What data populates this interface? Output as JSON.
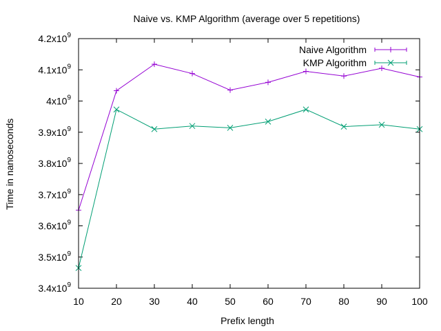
{
  "chart_data": {
    "type": "line",
    "title": "Naive vs. KMP Algorithm (average over 5 repetitions)",
    "xlabel": "Prefix length",
    "ylabel": "Time in nanoseconds",
    "xlim": [
      10,
      100
    ],
    "ylim": [
      3400000000.0,
      4200000000.0
    ],
    "x": [
      10,
      20,
      30,
      40,
      50,
      60,
      70,
      80,
      90,
      100
    ],
    "x_ticks": [
      10,
      20,
      30,
      40,
      50,
      60,
      70,
      80,
      90,
      100
    ],
    "y_ticks": [
      {
        "value": 3400000000.0,
        "mantissa": "3.4",
        "exponent": "9"
      },
      {
        "value": 3500000000.0,
        "mantissa": "3.5",
        "exponent": "9"
      },
      {
        "value": 3600000000.0,
        "mantissa": "3.6",
        "exponent": "9"
      },
      {
        "value": 3700000000.0,
        "mantissa": "3.7",
        "exponent": "9"
      },
      {
        "value": 3800000000.0,
        "mantissa": "3.8",
        "exponent": "9"
      },
      {
        "value": 3900000000.0,
        "mantissa": "3.9",
        "exponent": "9"
      },
      {
        "value": 4000000000.0,
        "mantissa": "4",
        "exponent": "9"
      },
      {
        "value": 4100000000.0,
        "mantissa": "4.1",
        "exponent": "9"
      },
      {
        "value": 4200000000.0,
        "mantissa": "4.2",
        "exponent": "9"
      }
    ],
    "grid": false,
    "legend_position": "top-right",
    "series": [
      {
        "name": "Naive Algorithm",
        "color": "#9400d3",
        "marker": "plus",
        "values": [
          3650000000.0,
          4033000000.0,
          4118000000.0,
          4088000000.0,
          4035000000.0,
          4060000000.0,
          4095000000.0,
          4080000000.0,
          4105000000.0,
          4077000000.0
        ]
      },
      {
        "name": "KMP Algorithm",
        "color": "#009e73",
        "marker": "cross",
        "values": [
          3465000000.0,
          3973000000.0,
          3910000000.0,
          3920000000.0,
          3914000000.0,
          3934000000.0,
          3973000000.0,
          3918000000.0,
          3924000000.0,
          3910000000.0
        ]
      }
    ]
  }
}
